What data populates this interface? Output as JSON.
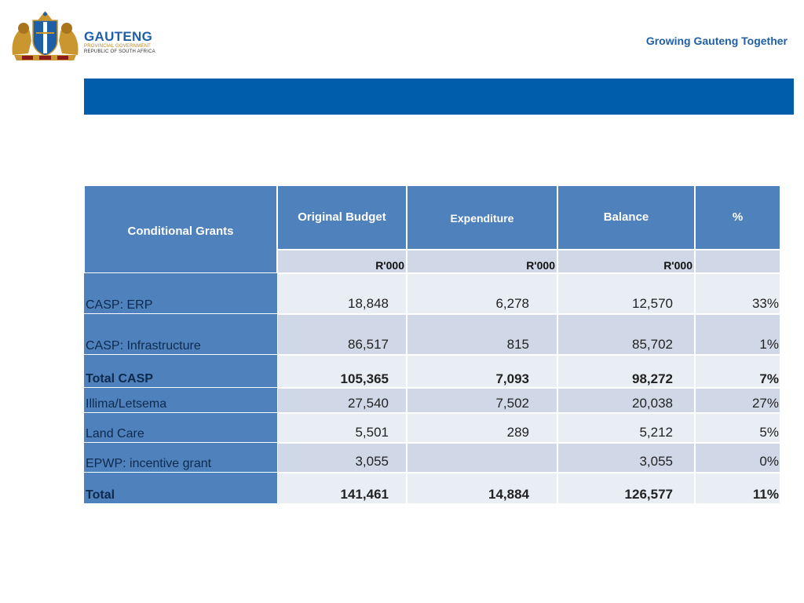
{
  "header": {
    "logo_name": "GAUTENG",
    "logo_line1": "PROVINCIAL GOVERNMENT",
    "logo_line2": "REPUBLIC OF SOUTH AFRICA",
    "tagline": "Growing Gauteng Together"
  },
  "table": {
    "col_label": "Conditional Grants",
    "columns": [
      "Original Budget",
      "Expenditure",
      "Balance",
      "%"
    ],
    "units": [
      "R'000",
      "R'000",
      "R'000"
    ],
    "rows": [
      {
        "label": "CASP: ERP",
        "budget": "18,848",
        "expenditure": "6,278",
        "balance": "12,570",
        "pct": "33%"
      },
      {
        "label": "CASP: Infrastructure",
        "budget": "86,517",
        "expenditure": "815",
        "balance": "85,702",
        "pct": "1%"
      },
      {
        "label": "Total CASP",
        "budget": "105,365",
        "expenditure": "7,093",
        "balance": "98,272",
        "pct": "7%"
      },
      {
        "label": "Illima/Letsema",
        "budget": "27,540",
        "expenditure": "7,502",
        "balance": "20,038",
        "pct": "27%"
      },
      {
        "label": "Land Care",
        "budget": "5,501",
        "expenditure": "289",
        "balance": "5,212",
        "pct": "5%"
      },
      {
        "label": "EPWP: incentive grant",
        "budget": "3,055",
        "expenditure": "",
        "balance": "3,055",
        "pct": "0%"
      },
      {
        "label": "Total",
        "budget": "141,461",
        "expenditure": "14,884",
        "balance": "126,577",
        "pct": "11%"
      }
    ]
  }
}
